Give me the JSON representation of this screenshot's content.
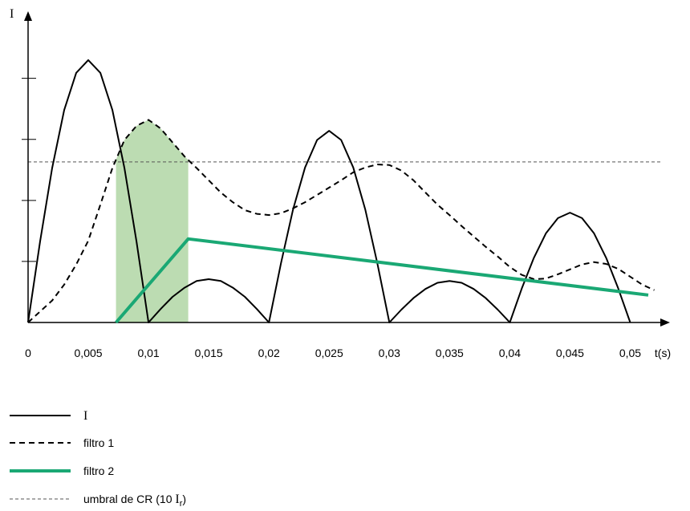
{
  "chart_data": {
    "type": "line",
    "y_label": "I",
    "x_label": "t(s)",
    "xlim": [
      0,
      0.0533
    ],
    "ylim": [
      0,
      5.1
    ],
    "xticks": [
      0,
      {
        "value": 0.005,
        "label": "0,005"
      },
      {
        "value": 0.01,
        "label": "0,01"
      },
      {
        "value": 0.015,
        "label": "0,015"
      },
      {
        "value": 0.02,
        "label": "0,02"
      },
      {
        "value": 0.025,
        "label": "0,025"
      },
      {
        "value": 0.03,
        "label": "0,03"
      },
      {
        "value": 0.035,
        "label": "0,035"
      },
      {
        "value": 0.04,
        "label": "0,04"
      },
      {
        "value": 0.045,
        "label": "0,045"
      },
      {
        "value": 0.05,
        "label": "0,05"
      }
    ],
    "yticks": [
      1,
      2,
      3,
      4
    ],
    "legend": "bottom-left",
    "series": [
      {
        "name": "I",
        "color": "#000000",
        "style": "solid",
        "x": [
          0,
          0.001,
          0.002,
          0.003,
          0.004,
          0.005,
          0.006,
          0.007,
          0.008,
          0.009,
          0.01,
          0.011,
          0.012,
          0.013,
          0.014,
          0.015,
          0.016,
          0.017,
          0.018,
          0.019,
          0.02,
          0.021,
          0.022,
          0.023,
          0.024,
          0.025,
          0.026,
          0.027,
          0.028,
          0.029,
          0.03,
          0.031,
          0.032,
          0.033,
          0.034,
          0.035,
          0.036,
          0.037,
          0.038,
          0.039,
          0.04,
          0.041,
          0.042,
          0.043,
          0.044,
          0.045,
          0.046,
          0.047,
          0.048,
          0.049,
          0.05
        ],
        "values": [
          0,
          1.33,
          2.53,
          3.48,
          4.09,
          4.3,
          4.09,
          3.48,
          2.53,
          1.33,
          0,
          0.22,
          0.42,
          0.57,
          0.68,
          0.71,
          0.68,
          0.57,
          0.42,
          0.22,
          0,
          0.97,
          1.85,
          2.54,
          2.99,
          3.14,
          2.99,
          2.54,
          1.85,
          0.97,
          0,
          0.21,
          0.4,
          0.55,
          0.65,
          0.68,
          0.65,
          0.55,
          0.4,
          0.21,
          0,
          0.56,
          1.06,
          1.46,
          1.71,
          1.8,
          1.71,
          1.46,
          1.06,
          0.56,
          0
        ]
      },
      {
        "name": "filtro 1",
        "color": "#000000",
        "style": "dashed",
        "x": [
          0,
          0.001,
          0.002,
          0.003,
          0.004,
          0.005,
          0.006,
          0.007,
          0.008,
          0.009,
          0.01,
          0.011,
          0.012,
          0.013,
          0.014,
          0.015,
          0.016,
          0.017,
          0.018,
          0.019,
          0.02,
          0.021,
          0.022,
          0.023,
          0.024,
          0.025,
          0.026,
          0.027,
          0.028,
          0.029,
          0.03,
          0.031,
          0.032,
          0.033,
          0.034,
          0.035,
          0.036,
          0.037,
          0.038,
          0.039,
          0.04,
          0.041,
          0.042,
          0.043,
          0.044,
          0.045,
          0.046,
          0.047,
          0.048,
          0.049,
          0.05,
          0.051,
          0.052
        ],
        "values": [
          0,
          0.18,
          0.36,
          0.62,
          0.95,
          1.34,
          1.93,
          2.53,
          2.99,
          3.22,
          3.32,
          3.18,
          2.95,
          2.72,
          2.53,
          2.33,
          2.13,
          1.97,
          1.84,
          1.78,
          1.76,
          1.79,
          1.87,
          1.97,
          2.09,
          2.21,
          2.33,
          2.46,
          2.54,
          2.59,
          2.58,
          2.49,
          2.33,
          2.13,
          1.93,
          1.76,
          1.58,
          1.41,
          1.24,
          1.08,
          0.91,
          0.78,
          0.71,
          0.72,
          0.79,
          0.87,
          0.95,
          0.99,
          0.96,
          0.88,
          0.75,
          0.62,
          0.53
        ]
      },
      {
        "name": "filtro 2",
        "color": "#1aa874",
        "style": "thick",
        "x": [
          0.0073,
          0.0133,
          0.0515
        ],
        "values": [
          0,
          1.37,
          0.45
        ]
      }
    ],
    "threshold": {
      "value": 2.63,
      "color": "#555555",
      "style": "thin-dashed",
      "label_parts": [
        "umbral de CR (10 ",
        "I",
        "r",
        ")"
      ]
    },
    "shaded_range": {
      "x": [
        0.0073,
        0.0133
      ],
      "series": 1,
      "color": "#bcdcb2"
    }
  }
}
